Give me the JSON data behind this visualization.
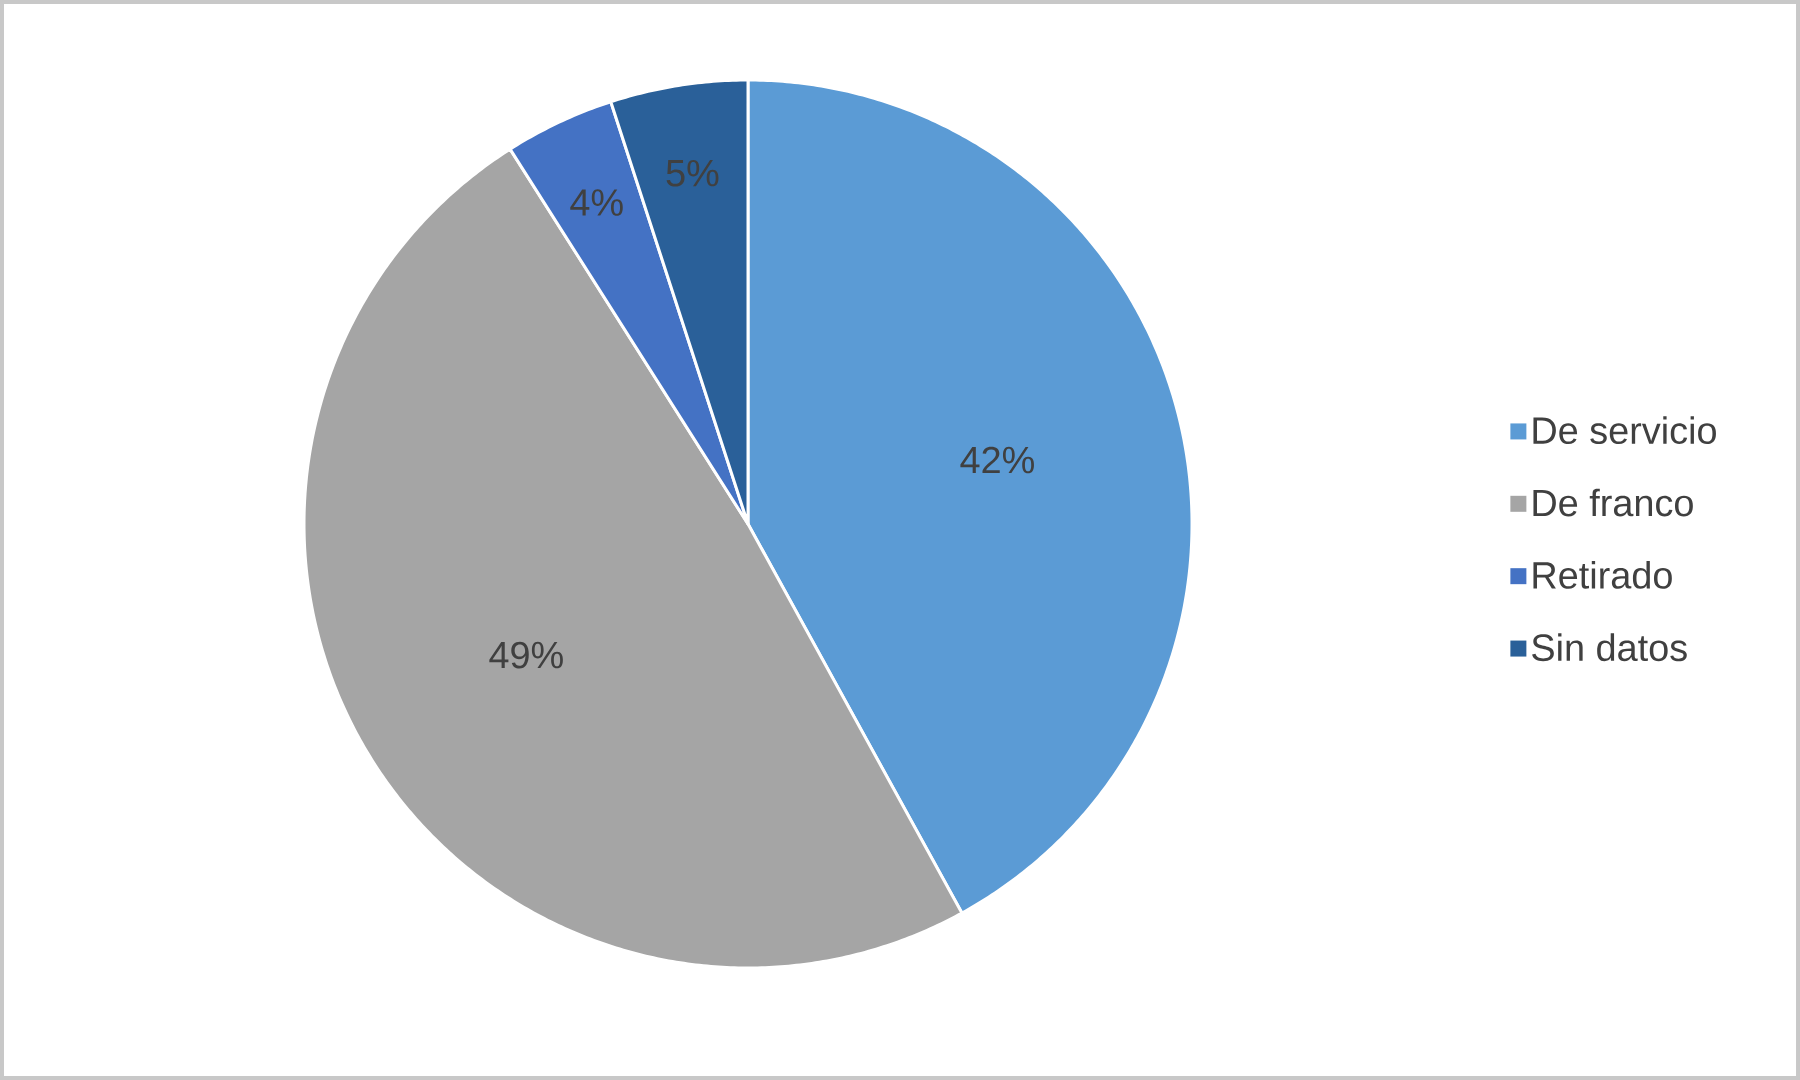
{
  "chart_data": {
    "type": "pie",
    "categories": [
      "De servicio",
      "De franco",
      "Retirado",
      "Sin datos"
    ],
    "values": [
      42,
      49,
      4,
      5
    ],
    "colors": [
      "#5b9bd5",
      "#a5a5a5",
      "#4472c4",
      "#2a6099"
    ],
    "value_labels": [
      "42%",
      "49%",
      "4%",
      "5%"
    ],
    "legend": "right"
  }
}
